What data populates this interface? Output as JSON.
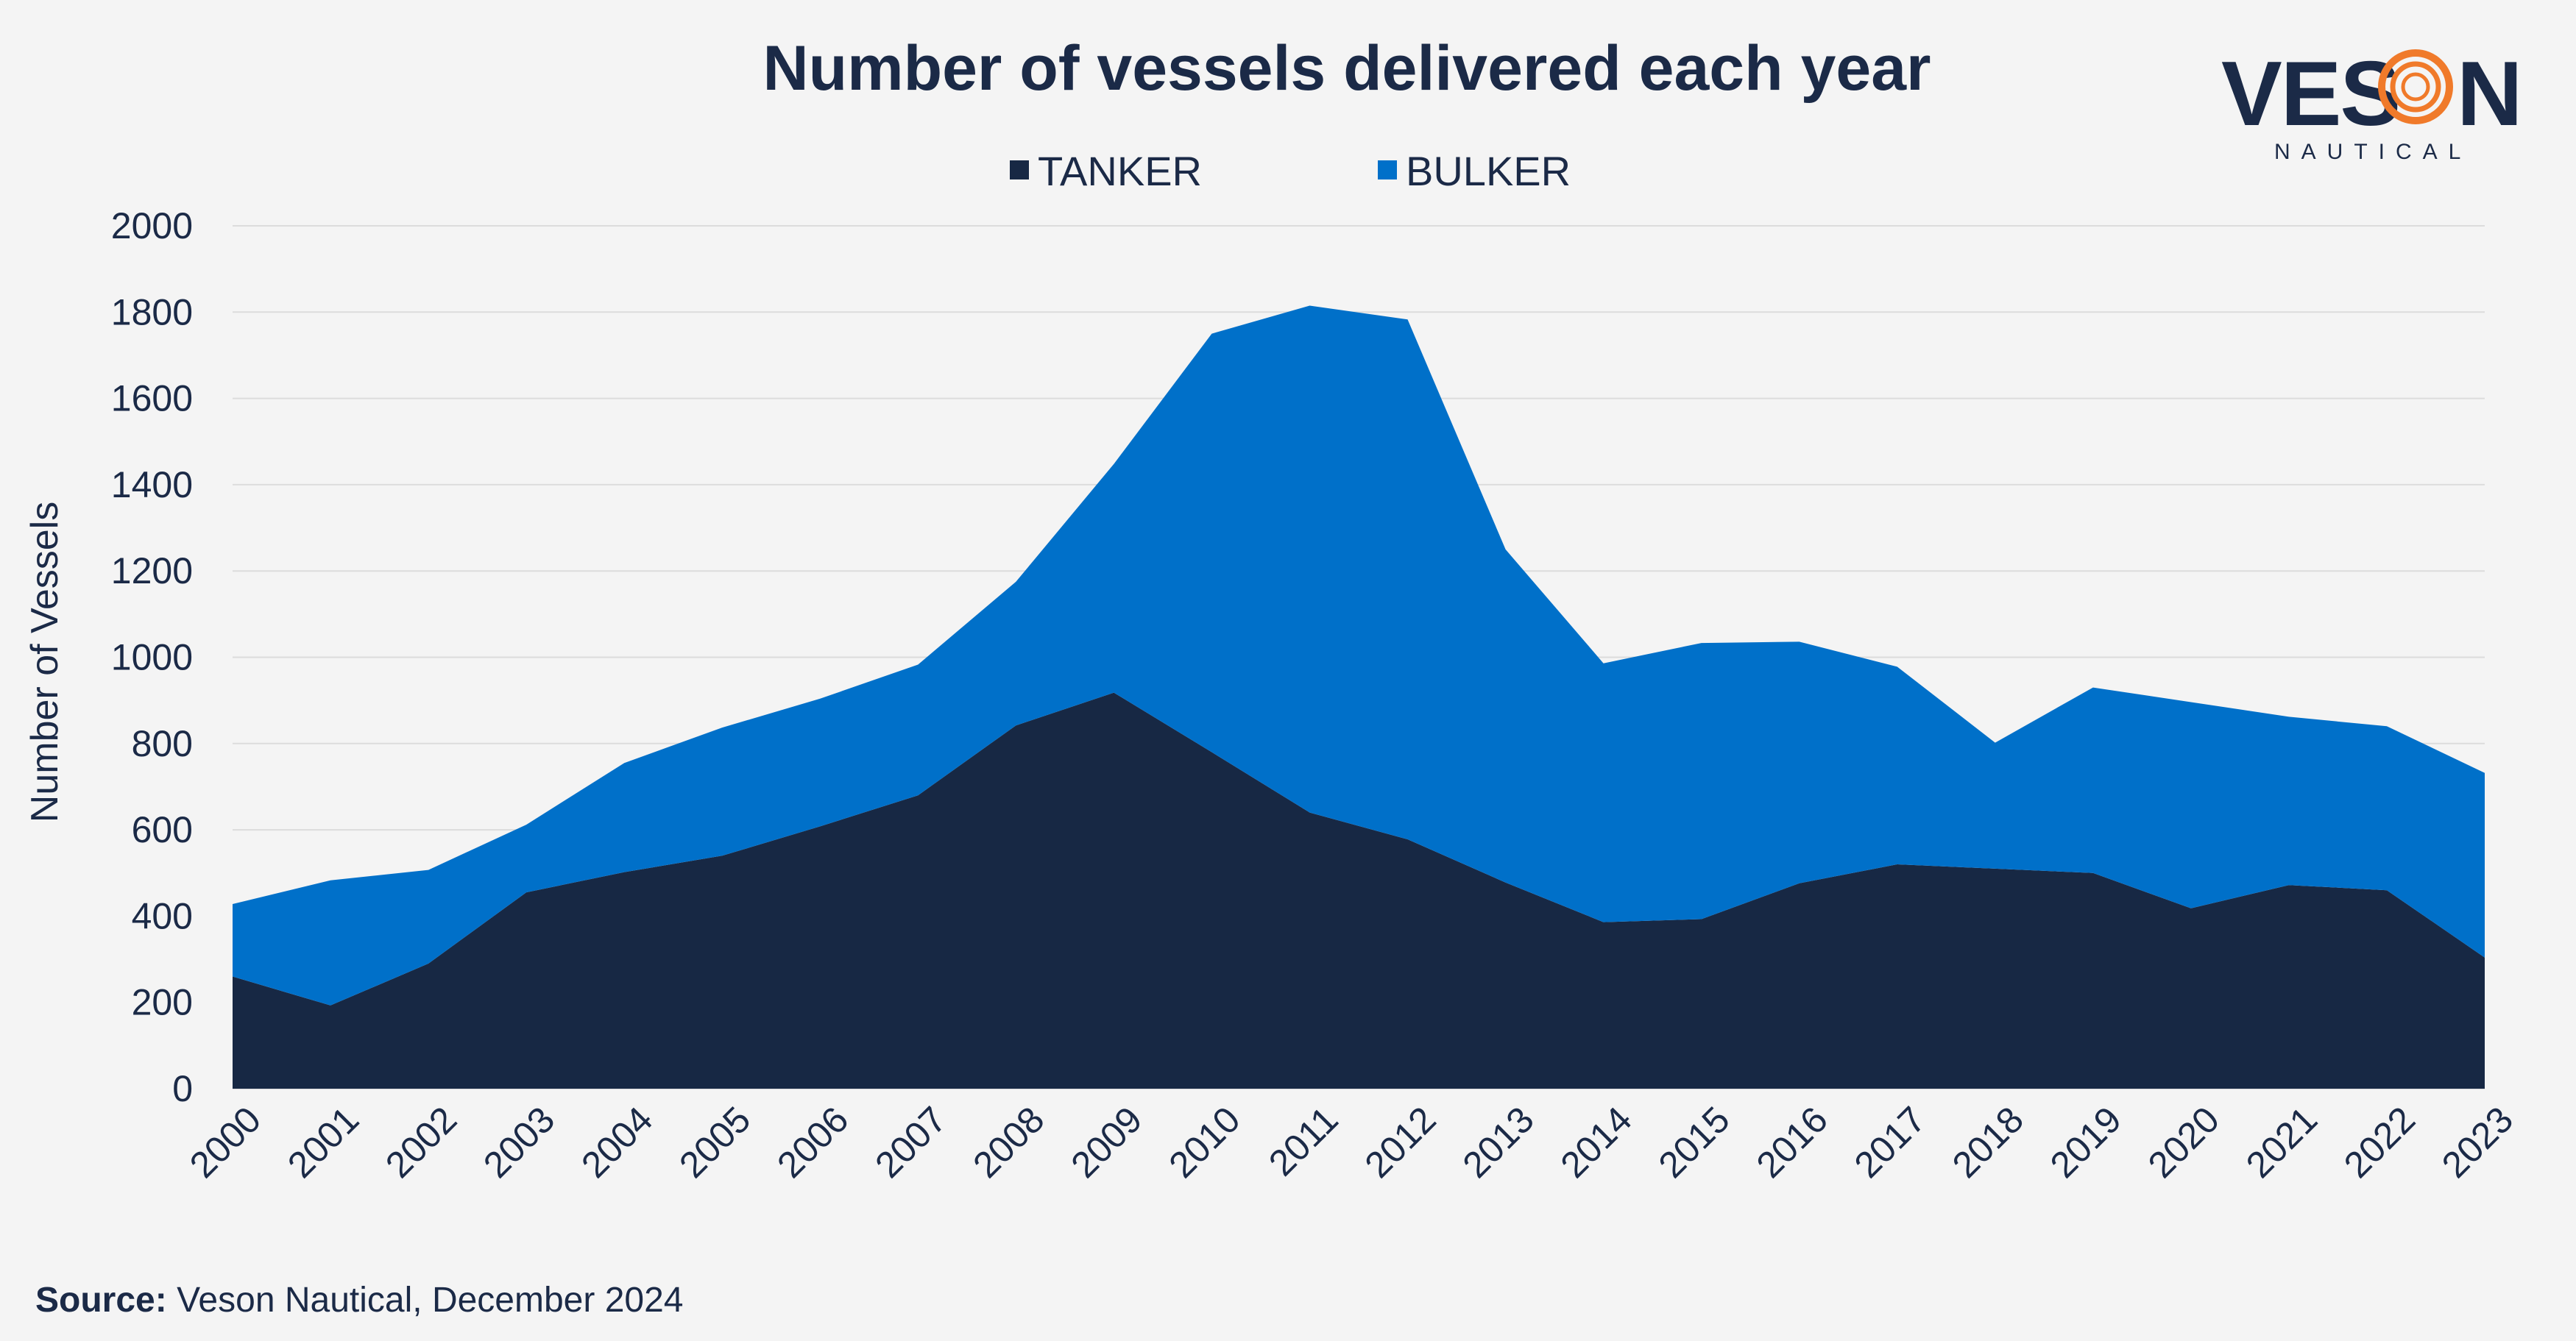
{
  "logo": {
    "brand_left": "VES",
    "brand_right": "N",
    "sub": "NAUTICAL",
    "ring_color": "#f07a2a"
  },
  "source": {
    "label": "Source:",
    "text": "Veson Nautical, December 2024"
  },
  "chart_data": {
    "type": "area",
    "stacked": true,
    "title": "Number of vessels delivered each year",
    "xlabel": "",
    "ylabel": "Number of Vessels",
    "ylim": [
      0,
      2000
    ],
    "yticks": [
      0,
      200,
      400,
      600,
      800,
      1000,
      1200,
      1400,
      1600,
      1800,
      2000
    ],
    "grid": true,
    "legend_position": "top-center",
    "x": [
      "2000",
      "2001",
      "2002",
      "2003",
      "2004",
      "2005",
      "2006",
      "2007",
      "2008",
      "2009",
      "2010",
      "2011",
      "2012",
      "2013",
      "2014",
      "2015",
      "2016",
      "2017",
      "2018",
      "2019",
      "2020",
      "2021",
      "2022",
      "2023"
    ],
    "series": [
      {
        "name": "TANKER",
        "color": "#172844",
        "values": [
          260,
          193,
          290,
          455,
          502,
          540,
          608,
          680,
          842,
          918,
          780,
          640,
          578,
          478,
          386,
          393,
          476,
          520,
          510,
          500,
          418,
          472,
          460,
          304
        ]
      },
      {
        "name": "BULKER",
        "color": "#0070c9",
        "values": [
          168,
          290,
          217,
          157,
          253,
          297,
          296,
          303,
          333,
          530,
          970,
          1175,
          1205,
          772,
          600,
          640,
          560,
          458,
          292,
          430,
          478,
          390,
          380,
          428
        ]
      }
    ]
  }
}
